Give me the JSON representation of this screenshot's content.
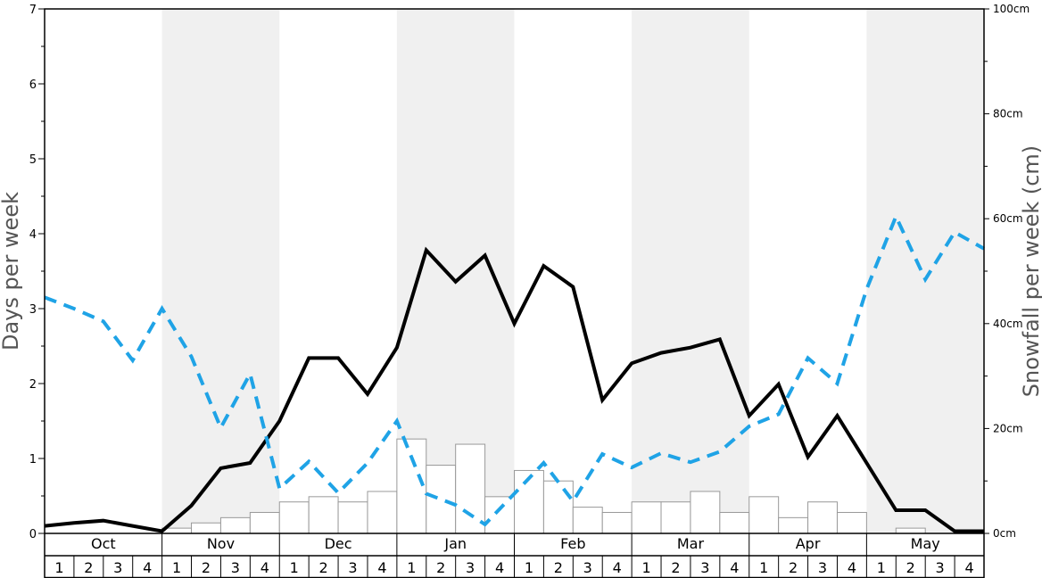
{
  "chart_data": {
    "type": "bar",
    "ylabel_left": "Days per week",
    "ylabel_right": "Snowfall per week (cm)",
    "ylim_left": [
      0,
      7
    ],
    "ylim_right": [
      0,
      100
    ],
    "left_ticks": [
      "0",
      "1",
      "2",
      "3",
      "4",
      "5",
      "6",
      "7"
    ],
    "right_ticks": [
      "0cm",
      "20cm",
      "40cm",
      "60cm",
      "80cm",
      "100cm"
    ],
    "months": [
      "Oct",
      "Nov",
      "Dec",
      "Jan",
      "Feb",
      "Mar",
      "Apr",
      "May"
    ],
    "week_labels": [
      "1",
      "2",
      "3",
      "4"
    ],
    "colors": {
      "shade": "#f0f0f0",
      "black_line": "#000000",
      "blue_line": "#1fa3e6",
      "bar_fill": "#ffffff",
      "bar_stroke": "#999999"
    },
    "snowfall_cm": [
      0,
      0,
      0,
      0,
      1,
      2,
      3,
      4,
      6,
      7,
      6,
      8,
      18,
      13,
      17,
      7,
      12,
      10,
      5,
      4,
      6,
      6,
      8,
      4,
      7,
      3,
      6,
      4,
      0,
      1,
      0,
      0
    ],
    "series": [
      {
        "values": [
          0.1,
          0.14,
          0.17,
          0.1,
          0.03,
          0.37,
          0.87,
          0.94,
          1.5,
          2.34,
          2.34,
          1.86,
          2.48,
          3.78,
          3.36,
          3.71,
          2.8,
          3.57,
          3.29,
          1.78,
          2.27,
          2.41,
          2.48,
          2.59,
          1.57,
          1.99,
          1.02,
          1.57,
          0.94,
          0.31,
          0.31,
          0.03,
          0.03
        ]
      },
      {
        "values": [
          3.15,
          3.0,
          2.83,
          2.31,
          3.0,
          2.36,
          1.41,
          2.13,
          0.6,
          0.96,
          0.54,
          0.94,
          1.5,
          0.53,
          0.38,
          0.12,
          0.53,
          0.94,
          0.43,
          1.06,
          0.88,
          1.07,
          0.95,
          1.09,
          1.43,
          1.59,
          2.34,
          2.0,
          3.26,
          4.23,
          3.39,
          4.02,
          3.8
        ]
      }
    ]
  }
}
